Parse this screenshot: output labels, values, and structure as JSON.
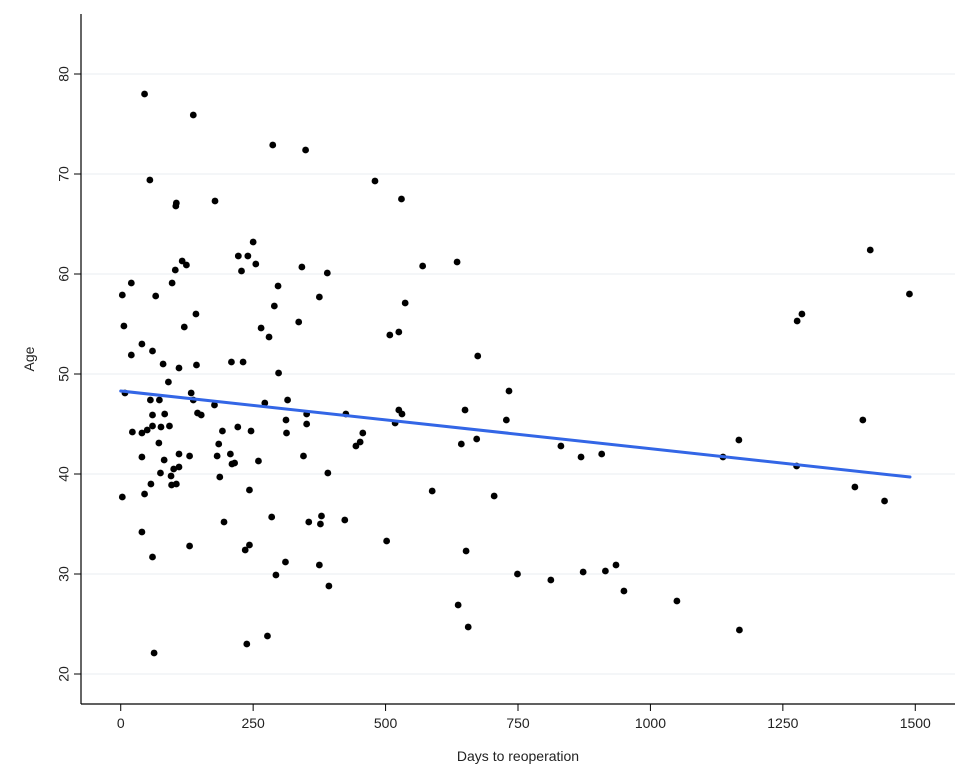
{
  "chart_data": {
    "type": "scatter",
    "xlabel": "Days to reoperation",
    "ylabel": "Age",
    "xlim": [
      -75,
      1575
    ],
    "ylim": [
      17,
      86
    ],
    "x_ticks": [
      0,
      250,
      500,
      750,
      1000,
      1250,
      1500
    ],
    "y_ticks": [
      20,
      30,
      40,
      50,
      60,
      70,
      80
    ],
    "grid": "horizontal",
    "point_color": "#000000",
    "trend_line": {
      "color": "#3366e6",
      "x": [
        0,
        1490
      ],
      "y": [
        48.3,
        39.7
      ]
    },
    "points": [
      [
        3,
        37.7
      ],
      [
        3,
        57.9
      ],
      [
        6,
        54.8
      ],
      [
        8,
        48.1
      ],
      [
        20,
        51.9
      ],
      [
        20,
        59.1
      ],
      [
        22,
        44.2
      ],
      [
        40,
        34.2
      ],
      [
        40,
        41.7
      ],
      [
        40,
        53.0
      ],
      [
        40,
        44.1
      ],
      [
        45,
        38.0
      ],
      [
        45,
        78.0
      ],
      [
        50,
        44.4
      ],
      [
        55,
        69.4
      ],
      [
        56,
        47.4
      ],
      [
        57,
        39.0
      ],
      [
        60,
        31.7
      ],
      [
        60,
        44.8
      ],
      [
        60,
        45.9
      ],
      [
        60,
        52.3
      ],
      [
        63,
        22.1
      ],
      [
        66,
        57.8
      ],
      [
        72,
        43.1
      ],
      [
        73,
        47.4
      ],
      [
        75,
        40.1
      ],
      [
        76,
        44.7
      ],
      [
        80,
        51.0
      ],
      [
        82,
        41.4
      ],
      [
        83,
        46.0
      ],
      [
        90,
        49.2
      ],
      [
        92,
        44.8
      ],
      [
        95,
        39.8
      ],
      [
        96,
        38.9
      ],
      [
        97,
        59.1
      ],
      [
        100,
        40.5
      ],
      [
        103,
        60.4
      ],
      [
        104,
        66.8
      ],
      [
        105,
        39.0
      ],
      [
        105,
        67.1
      ],
      [
        110,
        42.0
      ],
      [
        110,
        40.7
      ],
      [
        110,
        50.6
      ],
      [
        116,
        61.3
      ],
      [
        120,
        54.7
      ],
      [
        124,
        60.9
      ],
      [
        130,
        41.8
      ],
      [
        130,
        32.8
      ],
      [
        133,
        48.1
      ],
      [
        137,
        75.9
      ],
      [
        137,
        47.4
      ],
      [
        142,
        56.0
      ],
      [
        143,
        50.9
      ],
      [
        145,
        46.1
      ],
      [
        152,
        45.9
      ],
      [
        177,
        46.9
      ],
      [
        178,
        67.3
      ],
      [
        182,
        41.8
      ],
      [
        185,
        43.0
      ],
      [
        187,
        39.7
      ],
      [
        192,
        44.3
      ],
      [
        195,
        35.2
      ],
      [
        207,
        42.0
      ],
      [
        209,
        51.2
      ],
      [
        210,
        41.0
      ],
      [
        215,
        41.1
      ],
      [
        221,
        44.7
      ],
      [
        222,
        61.8
      ],
      [
        228,
        60.3
      ],
      [
        231,
        51.2
      ],
      [
        235,
        32.4
      ],
      [
        238,
        23.0
      ],
      [
        240,
        61.8
      ],
      [
        243,
        32.9
      ],
      [
        243,
        38.4
      ],
      [
        246,
        44.3
      ],
      [
        250,
        63.2
      ],
      [
        255,
        61.0
      ],
      [
        260,
        41.3
      ],
      [
        265,
        54.6
      ],
      [
        272,
        47.1
      ],
      [
        277,
        23.8
      ],
      [
        280,
        53.7
      ],
      [
        285,
        35.7
      ],
      [
        287,
        72.9
      ],
      [
        290,
        56.8
      ],
      [
        293,
        29.9
      ],
      [
        297,
        58.8
      ],
      [
        298,
        50.1
      ],
      [
        311,
        31.2
      ],
      [
        312,
        45.4
      ],
      [
        313,
        44.1
      ],
      [
        315,
        47.4
      ],
      [
        336,
        55.2
      ],
      [
        342,
        60.7
      ],
      [
        345,
        41.8
      ],
      [
        349,
        72.4
      ],
      [
        351,
        46.0
      ],
      [
        351,
        45.0
      ],
      [
        355,
        35.2
      ],
      [
        375,
        30.9
      ],
      [
        375,
        57.7
      ],
      [
        377,
        35.0
      ],
      [
        379,
        35.8
      ],
      [
        390,
        60.1
      ],
      [
        391,
        40.1
      ],
      [
        393,
        28.8
      ],
      [
        423,
        35.4
      ],
      [
        425,
        46.0
      ],
      [
        444,
        42.8
      ],
      [
        452,
        43.2
      ],
      [
        457,
        44.1
      ],
      [
        480,
        69.3
      ],
      [
        502,
        33.3
      ],
      [
        508,
        53.9
      ],
      [
        518,
        45.1
      ],
      [
        525,
        54.2
      ],
      [
        525,
        46.4
      ],
      [
        530,
        67.5
      ],
      [
        531,
        46.0
      ],
      [
        537,
        57.1
      ],
      [
        570,
        60.8
      ],
      [
        588,
        38.3
      ],
      [
        635,
        61.2
      ],
      [
        637,
        26.9
      ],
      [
        643,
        43.0
      ],
      [
        650,
        46.4
      ],
      [
        652,
        32.3
      ],
      [
        656,
        24.7
      ],
      [
        672,
        43.5
      ],
      [
        674,
        51.8
      ],
      [
        705,
        37.8
      ],
      [
        728,
        45.4
      ],
      [
        733,
        48.3
      ],
      [
        749,
        30.0
      ],
      [
        812,
        29.4
      ],
      [
        831,
        42.8
      ],
      [
        869,
        41.7
      ],
      [
        873,
        30.2
      ],
      [
        908,
        42.0
      ],
      [
        915,
        30.3
      ],
      [
        935,
        30.9
      ],
      [
        950,
        28.3
      ],
      [
        1050,
        27.3
      ],
      [
        1137,
        41.7
      ],
      [
        1167,
        43.4
      ],
      [
        1168,
        24.4
      ],
      [
        1276,
        40.8
      ],
      [
        1277,
        55.3
      ],
      [
        1286,
        56.0
      ],
      [
        1386,
        38.7
      ],
      [
        1401,
        45.4
      ],
      [
        1415,
        62.4
      ],
      [
        1442,
        37.3
      ],
      [
        1489,
        58.0
      ]
    ]
  }
}
